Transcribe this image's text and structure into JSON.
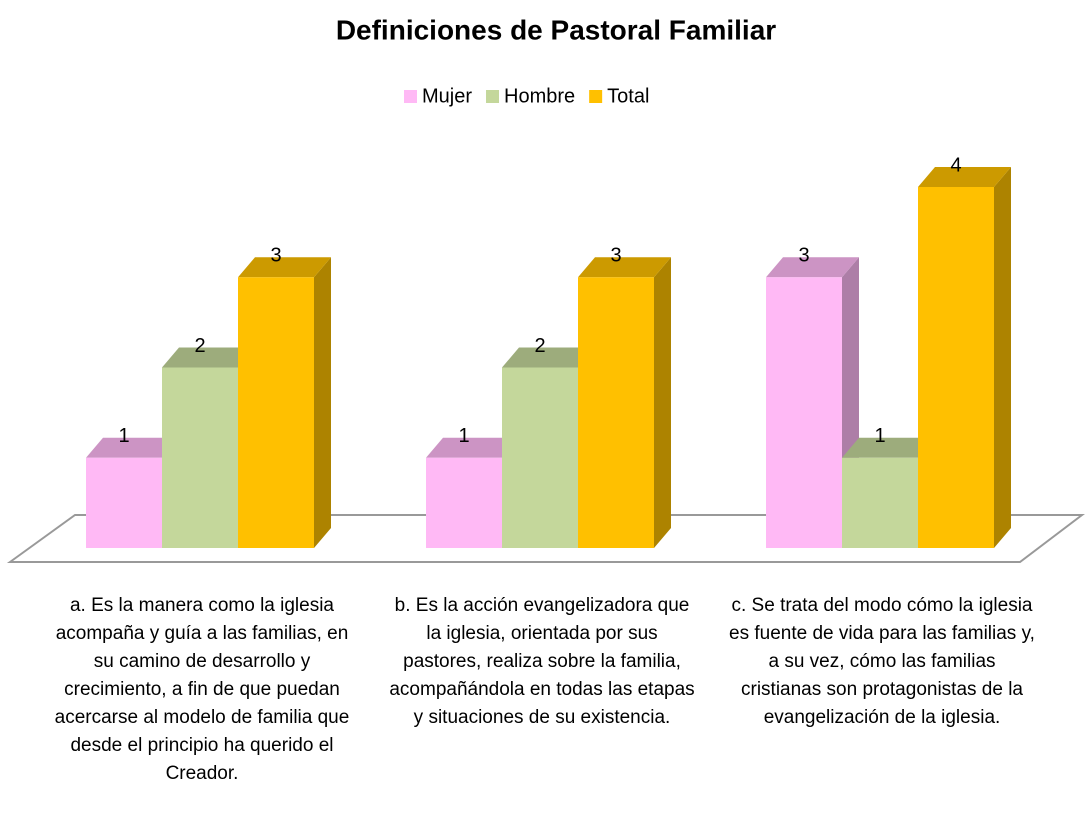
{
  "chart_data": {
    "type": "bar3d",
    "title": "Definiciones de Pastoral Familiar",
    "categories": [
      "a.   Es la manera como la iglesia acompaña y guía a las familias, en su camino de desarrollo y crecimiento, a fin de que puedan acercarse al modelo de familia que desde el principio ha querido el Creador.",
      "b.   Es la acción evangelizadora que la iglesia, orientada por sus pastores, realiza sobre la familia, acompañándola en todas las etapas y situaciones de su existencia.",
      "c.   Se trata del modo cómo la iglesia es fuente de vida para las familias y, a su vez, cómo las familias cristianas son protagonistas de la evangelización de la iglesia."
    ],
    "series": [
      {
        "name": "Mujer",
        "color": "#ffb9f5",
        "values": [
          1,
          1,
          3
        ]
      },
      {
        "name": "Hombre",
        "color": "#c4d79b",
        "values": [
          2,
          2,
          1
        ]
      },
      {
        "name": "Total",
        "color": "#ffc000",
        "values": [
          3,
          3,
          4
        ]
      }
    ],
    "legend": "top"
  }
}
